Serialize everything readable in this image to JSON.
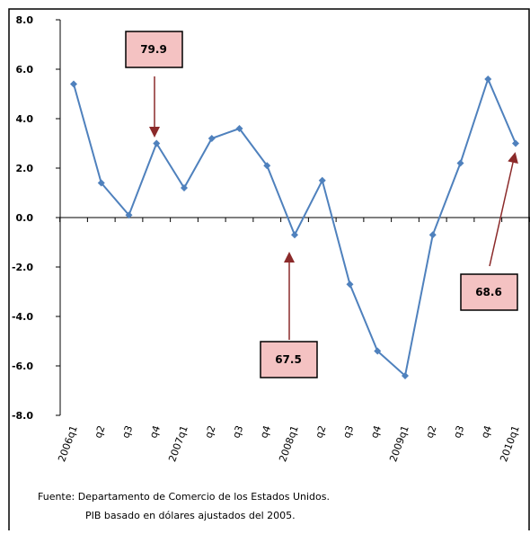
{
  "chart_data": {
    "type": "line",
    "categories": [
      "2006q1",
      "q2",
      "q3",
      "q4",
      "2007q1",
      "q2",
      "q3",
      "q4",
      "2008q1",
      "q2",
      "q3",
      "q4",
      "2009q1",
      "q2",
      "q3",
      "q4",
      "2010q1"
    ],
    "series": [
      {
        "name": "PIB",
        "color": "#4f81bd",
        "values": [
          5.4,
          1.4,
          0.1,
          3.0,
          1.2,
          3.2,
          3.6,
          2.1,
          -0.7,
          1.5,
          -2.7,
          -5.4,
          -6.4,
          -0.7,
          2.2,
          5.6,
          3.0
        ]
      }
    ],
    "ylim": [
      -8,
      8
    ],
    "yticks": [
      {
        "value": -8,
        "label": "-8.0"
      },
      {
        "value": -6,
        "label": "-6.0"
      },
      {
        "value": -4,
        "label": "-4.0"
      },
      {
        "value": -2,
        "label": "-2.0"
      },
      {
        "value": 0,
        "label": "0.0"
      },
      {
        "value": 2,
        "label": "2.0"
      },
      {
        "value": 4,
        "label": "4.0"
      },
      {
        "value": 6,
        "label": "6.0"
      },
      {
        "value": 8,
        "label": "8.0"
      }
    ],
    "annotations": [
      "79.9",
      "67.5",
      "68.6"
    ],
    "source": [
      "Fuente: Departamento de Comercio de los Estados Unidos.",
      "PIB basado en dólares ajustados del 2005."
    ]
  }
}
